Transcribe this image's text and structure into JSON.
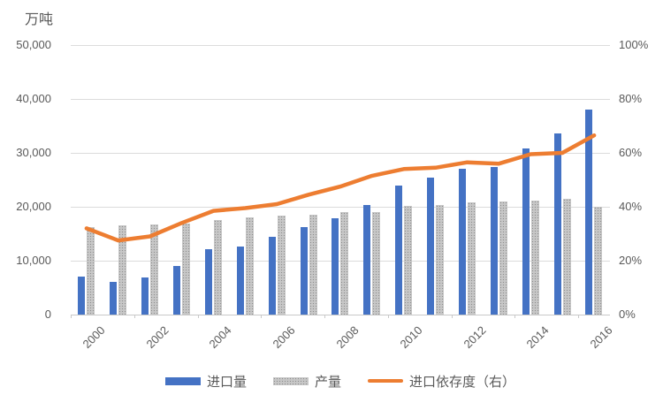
{
  "title": "万吨",
  "colors": {
    "import_bar": "#4472c4",
    "production_bar": "#acacac",
    "dependency_line": "#ed7d31",
    "gridline": "#dcdcdc",
    "axis_text": "#595959"
  },
  "chart_data": {
    "type": "bar",
    "subtype": "combo bar+line, dual axis",
    "title": "万吨",
    "grid": true,
    "categories": [
      2000,
      2001,
      2002,
      2003,
      2004,
      2005,
      2006,
      2007,
      2008,
      2009,
      2010,
      2011,
      2012,
      2013,
      2014,
      2015,
      2016
    ],
    "series": [
      {
        "name": "进口量",
        "type": "bar",
        "axis": "left",
        "color": "#4472c4",
        "values": [
          7000,
          6000,
          6900,
          9100,
          12200,
          12700,
          14500,
          16300,
          17900,
          20400,
          23900,
          25400,
          27100,
          27400,
          30800,
          33600,
          38100
        ]
      },
      {
        "name": "产量",
        "type": "bar",
        "axis": "left",
        "color": "#acacac",
        "pattern": "dots",
        "values": [
          16300,
          16500,
          16800,
          16900,
          17600,
          18100,
          18400,
          18600,
          19000,
          19000,
          20100,
          20300,
          20800,
          21000,
          21100,
          21500,
          20000
        ]
      },
      {
        "name": "进口依存度（右）",
        "type": "line",
        "axis": "right",
        "color": "#ed7d31",
        "unit": "%",
        "values": [
          32,
          27.5,
          29,
          34,
          38.5,
          39.5,
          41,
          44.5,
          47.5,
          51.5,
          54,
          54.5,
          56.5,
          56,
          59.5,
          60,
          66.5
        ]
      }
    ],
    "left_axis": {
      "title": "万吨",
      "min": 0,
      "max": 50000,
      "tick_labels": [
        "50,000",
        "40,000",
        "30,000",
        "20,000",
        "10,000",
        "0"
      ]
    },
    "right_axis": {
      "min": 0,
      "max": 100,
      "tick_labels": [
        "100%",
        "80%",
        "60%",
        "40%",
        "20%",
        "0%"
      ]
    },
    "x_axis": {
      "tick_labels": [
        "2000",
        "2002",
        "2004",
        "2006",
        "2008",
        "2010",
        "2012",
        "2014",
        "2016"
      ],
      "label_rotation": -45
    },
    "legend": {
      "position": "bottom",
      "items": [
        "进口量",
        "产量",
        "进口依存度（右）"
      ]
    }
  }
}
